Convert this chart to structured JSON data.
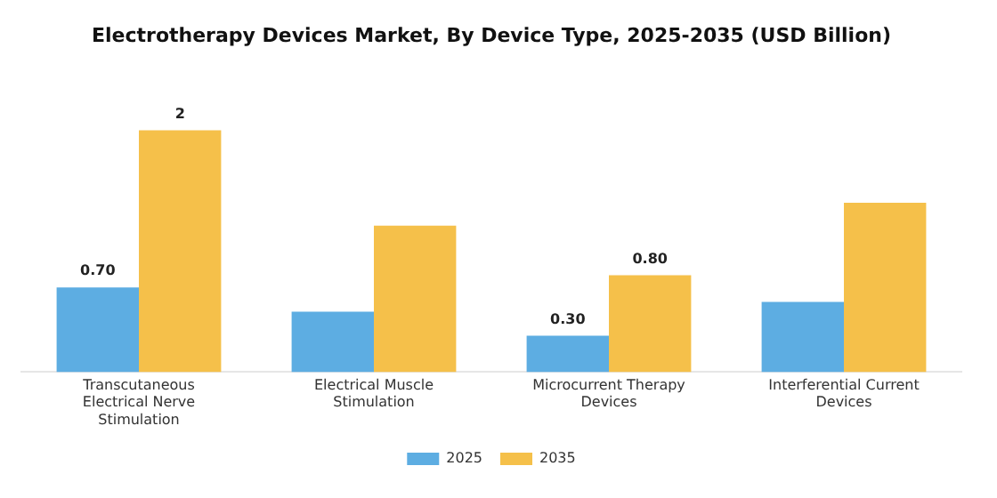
{
  "chart_data": {
    "type": "bar",
    "title": "Electrotherapy Devices Market, By Device Type, 2025-2035 (USD Billion)",
    "categories": [
      "Transcutaneous Electrical Nerve Stimulation",
      "Electrical Muscle Stimulation",
      "Microcurrent Therapy Devices",
      "Interferential Current Devices"
    ],
    "series": [
      {
        "name": "2025",
        "color": "#5dade2",
        "values": [
          0.7,
          0.5,
          0.3,
          0.58
        ],
        "value_labels": [
          "0.70",
          null,
          "0.30",
          null
        ]
      },
      {
        "name": "2035",
        "color": "#f5c04a",
        "values": [
          2,
          1.21,
          0.8,
          1.4
        ],
        "value_labels": [
          "2",
          null,
          "0.80",
          null
        ]
      }
    ],
    "legend": "bottom",
    "grid": false
  }
}
